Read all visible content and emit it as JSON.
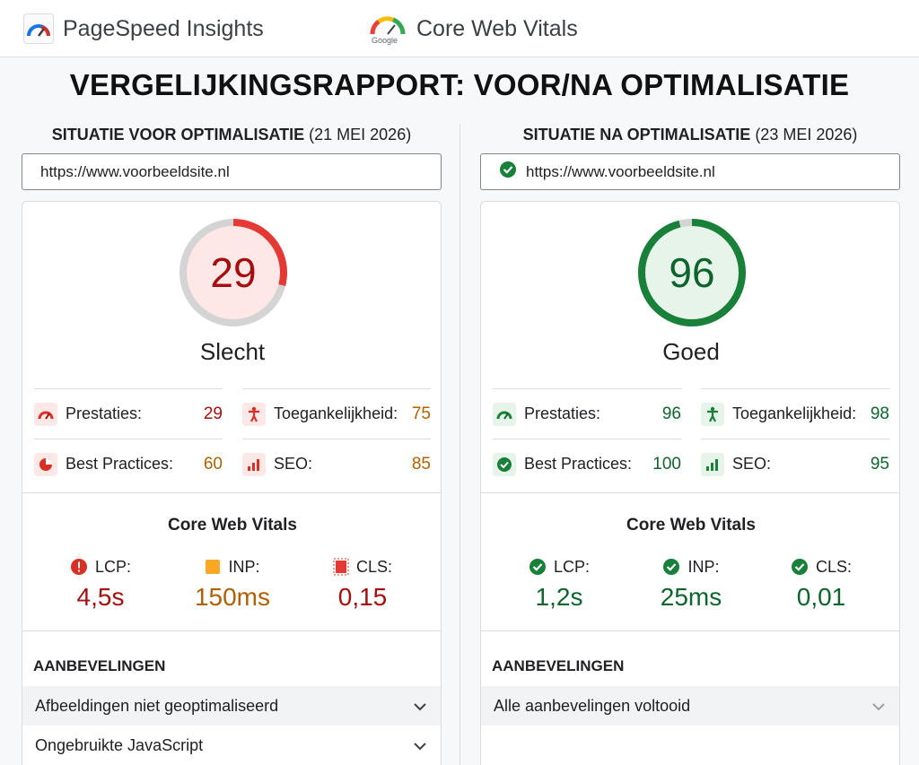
{
  "header": {
    "pagespeed_label": "PageSpeed Insights",
    "cwv_label": "Core Web Vitals",
    "google_label": "Google",
    "icons": [
      "pagespeed-logo-icon",
      "google-gauge-icon"
    ]
  },
  "title": "VERGELIJKINGSRAPPORT: VOOR/NA OPTIMALISATIE",
  "colors": {
    "red": "#d93025",
    "red_dark": "#a50e0e",
    "orange": "#b06000",
    "green": "#188038",
    "green_dark": "#0d652d"
  },
  "before": {
    "heading_bold": "SITUATIE VOOR OPTIMALISATIE",
    "heading_date": "(21 MEI 2026)",
    "url": "https://www.voorbeeldsite.nl",
    "score": "29",
    "score_fraction": 0.29,
    "rating": "Slecht",
    "metrics": {
      "performance_label": "Prestaties:",
      "performance_value": "29",
      "accessibility_label": "Toegankelijkheid:",
      "accessibility_value": "75",
      "best_practices_label": "Best Practices:",
      "best_practices_value": "60",
      "seo_label": "SEO:",
      "seo_value": "85"
    },
    "cwv_title": "Core Web Vitals",
    "vitals": {
      "lcp_label": "LCP:",
      "lcp_value": "4,5s",
      "inp_label": "INP:",
      "inp_value": "150ms",
      "cls_label": "CLS:",
      "cls_value": "0,15"
    },
    "recs_title": "AANBEVELINGEN",
    "recommendations": [
      "Afbeeldingen niet geoptimaliseerd",
      "Ongebruikte JavaScript"
    ]
  },
  "after": {
    "heading_bold": "SITUATIE NA OPTIMALISATIE",
    "heading_date": "(23 MEI 2026)",
    "url": "https://www.voorbeeldsite.nl",
    "score": "96",
    "score_fraction": 0.96,
    "rating": "Goed",
    "metrics": {
      "performance_label": "Prestaties:",
      "performance_value": "96",
      "accessibility_label": "Toegankelijkheid:",
      "accessibility_value": "98",
      "best_practices_label": "Best Practices:",
      "best_practices_value": "100",
      "seo_label": "SEO:",
      "seo_value": "95"
    },
    "cwv_title": "Core Web Vitals",
    "vitals": {
      "lcp_label": "LCP:",
      "lcp_value": "1,2s",
      "inp_label": "INP:",
      "inp_value": "25ms",
      "cls_label": "CLS:",
      "cls_value": "0,01"
    },
    "recs_title": "AANBEVELINGEN",
    "recommendations": [
      "Alle aanbevelingen voltooid"
    ]
  }
}
